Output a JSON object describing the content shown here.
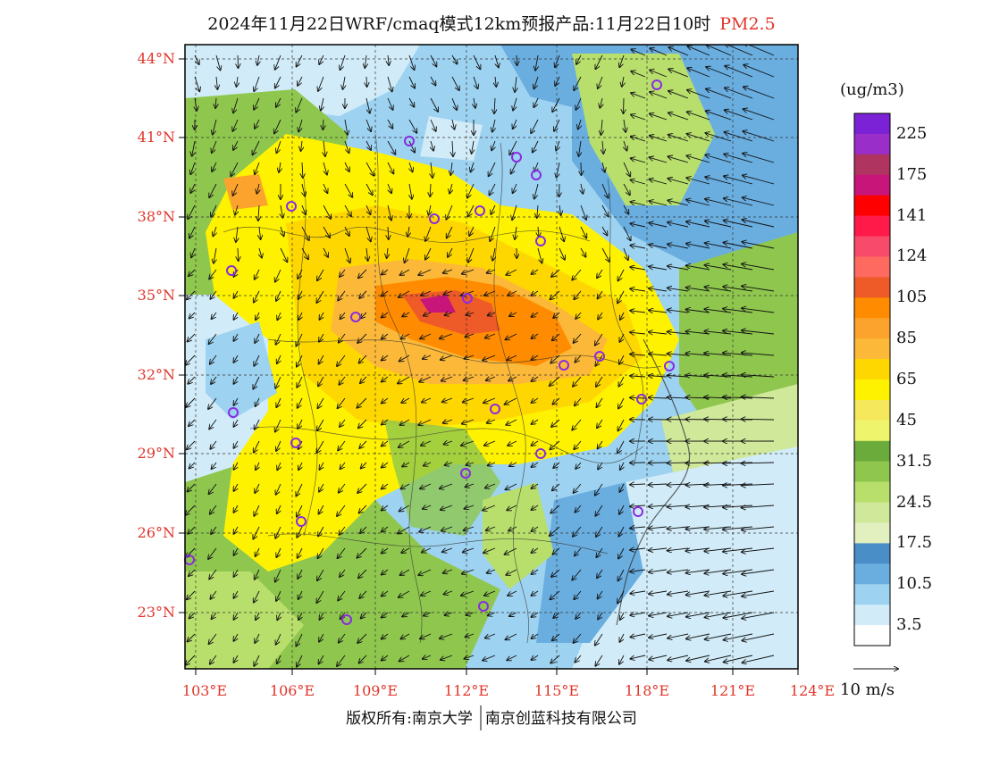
{
  "title": {
    "main": "2024年11月22日WRF/cmaq模式12km预报产品:11月22日10时",
    "pollutant": "PM2.5"
  },
  "axes": {
    "lat_labels": [
      "44°N",
      "41°N",
      "38°N",
      "35°N",
      "32°N",
      "29°N",
      "26°N",
      "23°N"
    ],
    "lon_labels": [
      "103°E",
      "106°E",
      "109°E",
      "112°E",
      "115°E",
      "118°E",
      "121°E",
      "124°E"
    ]
  },
  "colorbar": {
    "unit": "(ug/m3)",
    "labels": [
      "225",
      "175",
      "141",
      "124",
      "105",
      "85",
      "65",
      "45",
      "31.5",
      "24.5",
      "17.5",
      "10.5",
      "3.5"
    ],
    "colors": [
      "#7b22d6",
      "#9a2ec8",
      "#b03460",
      "#c8157a",
      "#ff0000",
      "#ff1a4a",
      "#f84a6a",
      "#ff6a60",
      "#ee5a28",
      "#ff8c00",
      "#fca32e",
      "#fcb838",
      "#ffd700",
      "#fff200",
      "#f5e85c",
      "#eef56c",
      "#6bab3c",
      "#8fc74e",
      "#b8df6c",
      "#cfe89a",
      "#e2f0c0",
      "#4a8ec7",
      "#6aaee0",
      "#9dd2f0",
      "#d1ecf8",
      "#ffffff"
    ]
  },
  "wind_reference": {
    "label": "10 m/s"
  },
  "copyright": {
    "left": "版权所有:南京大学",
    "right": "南京创蓝科技有限公司"
  },
  "colors": {
    "label_red": "#e0352b",
    "marker": "#8a2be2"
  }
}
